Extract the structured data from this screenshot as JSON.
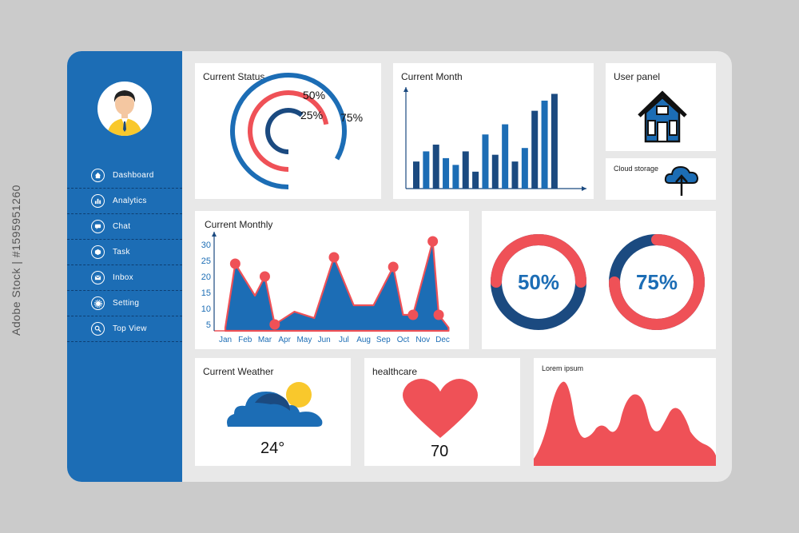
{
  "sidebar": {
    "items": [
      {
        "label": "Dashboard",
        "icon": "home-icon"
      },
      {
        "label": "Analytics",
        "icon": "bar-chart-icon"
      },
      {
        "label": "Chat",
        "icon": "chat-icon"
      },
      {
        "label": "Task",
        "icon": "box-icon"
      },
      {
        "label": "Inbox",
        "icon": "mail-icon"
      },
      {
        "label": "Setting",
        "icon": "gear-icon"
      },
      {
        "label": "Top View",
        "icon": "search-icon"
      }
    ]
  },
  "cards": {
    "current_status": {
      "title": "Current Status"
    },
    "current_month": {
      "title": "Current Month"
    },
    "user_panel": {
      "title": "User panel"
    },
    "cloud_storage": {
      "title": "Cloud storage"
    },
    "current_monthly": {
      "title": "Current Monthly"
    },
    "current_weather": {
      "title": "Current Weather",
      "temperature": "24°"
    },
    "healthcare": {
      "title": "healthcare",
      "value": "70"
    },
    "lorem": {
      "title": "Lorem ipsum"
    }
  },
  "side_watermark": "Adobe Stock | #1595951260",
  "colors": {
    "blue": "#1c6db5",
    "navy": "#1b4a80",
    "red": "#ef5157",
    "yellow": "#f9c82c"
  },
  "chart_data": [
    {
      "type": "pie",
      "title": "Current Status",
      "rings": [
        {
          "label": "75%",
          "value": 75,
          "color": "#1c6db5"
        },
        {
          "label": "50%",
          "value": 50,
          "color": "#ef5157"
        },
        {
          "label": "25%",
          "value": 25,
          "color": "#1b4a80"
        }
      ]
    },
    {
      "type": "bar",
      "title": "Current Month",
      "values": [
        8,
        11,
        13,
        9,
        7,
        11,
        5,
        16,
        10,
        19,
        8,
        12,
        23,
        26,
        28
      ],
      "colors": [
        "navy",
        "blue",
        "navy",
        "blue",
        "blue",
        "navy",
        "navy",
        "blue",
        "navy",
        "blue",
        "navy",
        "blue",
        "navy",
        "blue",
        "navy"
      ],
      "ylim": [
        0,
        30
      ]
    },
    {
      "type": "area",
      "title": "Current Monthly",
      "categories": [
        "Jan",
        "Feb",
        "Mar",
        "Apr",
        "May",
        "Jun",
        "Jul",
        "Aug",
        "Sep",
        "Oct",
        "Nov",
        "Dec"
      ],
      "yticks": [
        5,
        10,
        15,
        20,
        25,
        30
      ],
      "ylim": [
        3,
        33
      ],
      "x": [
        0,
        0.5,
        1.5,
        2,
        2.5,
        3.5,
        4.5,
        5.5,
        6.5,
        7.5,
        8.5,
        9,
        9.5,
        10.5,
        10.8,
        11.3
      ],
      "values": [
        4,
        24,
        14,
        20,
        5,
        9,
        7,
        26,
        11,
        11,
        23,
        8,
        8,
        31,
        8,
        4
      ],
      "markers": [
        1,
        3,
        4,
        7,
        10,
        12,
        13,
        14
      ]
    },
    {
      "type": "pie",
      "rings": [
        {
          "label": "50%",
          "value": 50,
          "color": "#ef5157"
        },
        {
          "label": "75%",
          "value": 75,
          "color": "#ef5157"
        }
      ]
    }
  ]
}
